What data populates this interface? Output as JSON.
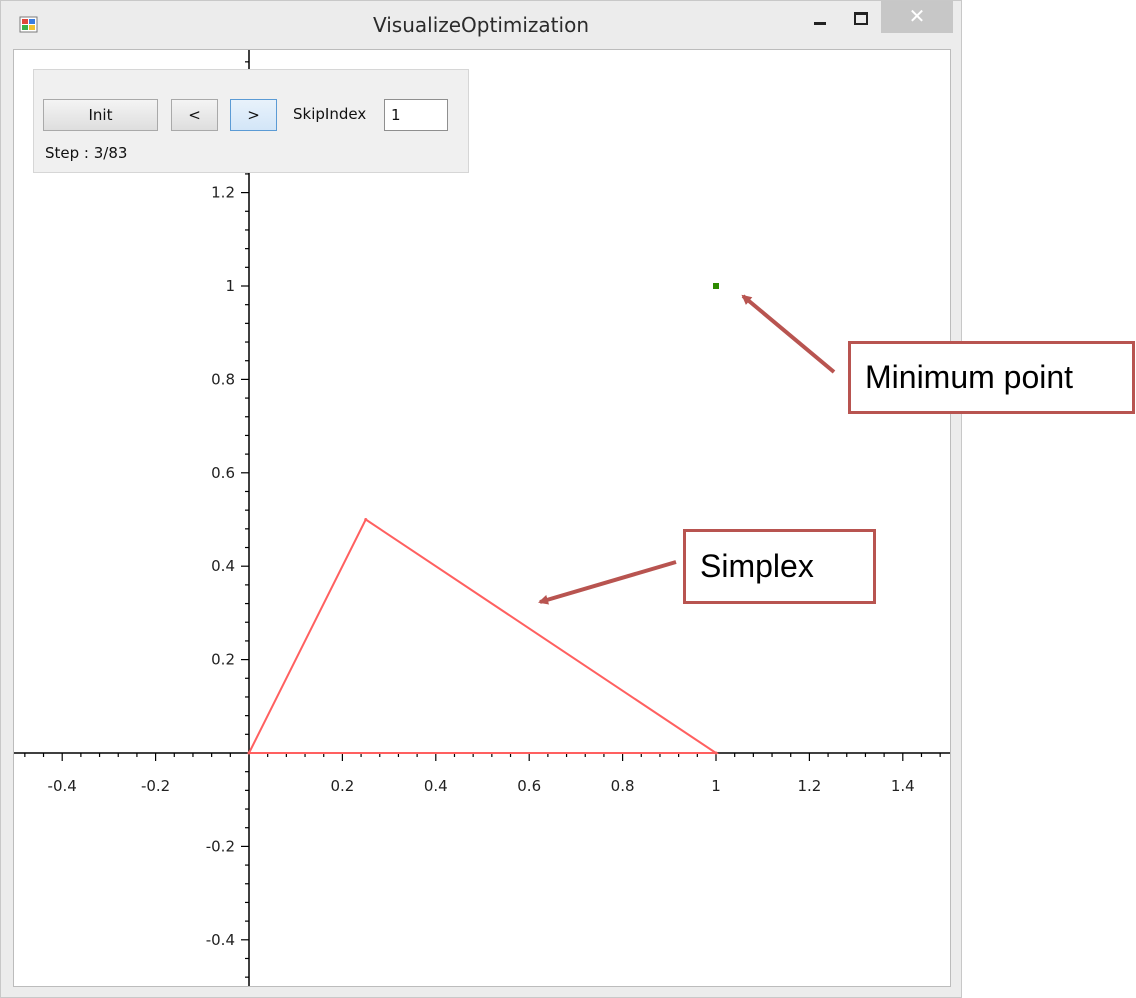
{
  "window": {
    "title": "VisualizeOptimization",
    "icons": {
      "app": "app-icon",
      "minimize": "minimize-icon",
      "maximize": "maximize-icon",
      "close": "close-icon"
    },
    "close_glyph": "✕"
  },
  "controls": {
    "init_label": "Init",
    "prev_label": "<",
    "next_label": ">",
    "skip_index_label": "SkipIndex",
    "skip_index_value": "1",
    "step_label": "Step : 3/83"
  },
  "callouts": {
    "minimum_point": "Minimum point",
    "simplex": "Simplex"
  },
  "colors": {
    "simplex": "#ff6060",
    "minimum_point": "#2e8b00",
    "callout_border": "#b85450",
    "axis": "#000000"
  },
  "chart_data": {
    "type": "scatter",
    "xlim": [
      -0.5,
      1.5
    ],
    "ylim": [
      -0.5,
      1.5
    ],
    "x_ticks": [
      -0.4,
      -0.2,
      0.2,
      0.4,
      0.6,
      0.8,
      1,
      1.2,
      1.4
    ],
    "x_tick_labels": [
      "-0.4",
      "-0.2",
      "0.2",
      "0.4",
      "0.6",
      "0.8",
      "1",
      "1.2",
      "1.4"
    ],
    "y_ticks": [
      -0.4,
      -0.2,
      0.2,
      0.4,
      0.6,
      0.8,
      1,
      1.2
    ],
    "y_tick_labels": [
      "-0.4",
      "-0.2",
      "0.2",
      "0.4",
      "0.6",
      "0.8",
      "1",
      "1.2"
    ],
    "grid": false,
    "simplex": [
      [
        0,
        0
      ],
      [
        0.25,
        0.5
      ],
      [
        1,
        0
      ]
    ],
    "minimum_point": [
      1,
      1
    ]
  }
}
